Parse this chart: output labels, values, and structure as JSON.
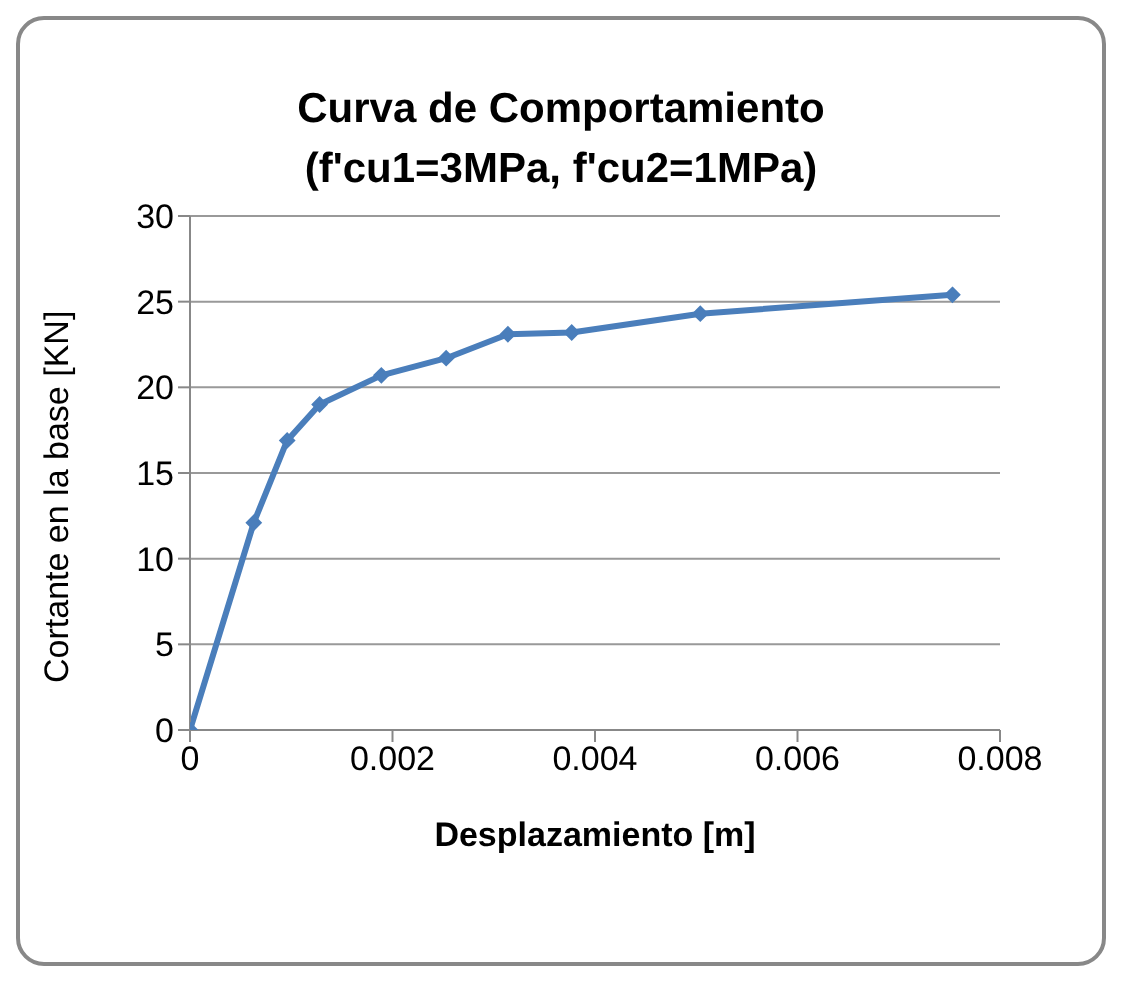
{
  "chart_data": {
    "type": "line",
    "title": "Curva de Comportamiento",
    "subtitle": "(f'cu1=3MPa, f'cu2=1MPa)",
    "xlabel": "Desplazamiento [m]",
    "ylabel": "Cortante en la base [KN]",
    "x": [
      0,
      0.00063,
      0.00096,
      0.00128,
      0.00189,
      0.00253,
      0.00314,
      0.00377,
      0.00504,
      0.00753
    ],
    "series": [
      {
        "color": "#4a7ebb",
        "values": [
          0,
          12.1,
          16.9,
          19.0,
          20.7,
          21.7,
          23.1,
          23.2,
          24.3,
          25.4
        ]
      }
    ],
    "xlim": [
      0,
      0.008
    ],
    "xticks": [
      0,
      0.002,
      0.004,
      0.006,
      0.008
    ],
    "ylim": [
      0,
      30
    ],
    "yticks": [
      0,
      5,
      10,
      15,
      20,
      25,
      30
    ],
    "grid": "y",
    "marker": "diamond",
    "line_style": "solid"
  }
}
